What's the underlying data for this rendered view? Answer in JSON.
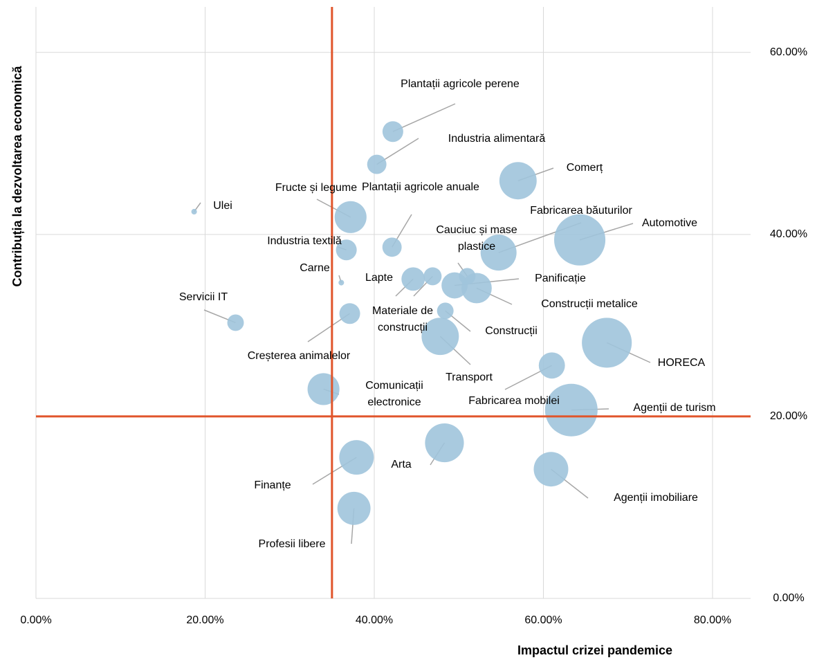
{
  "chart_data": {
    "type": "bubble",
    "xlabel": "Impactul crizei pandemice",
    "ylabel": "Contribuția la dezvoltarea economică",
    "xlim": [
      0,
      84.5
    ],
    "ylim": [
      0,
      65
    ],
    "xticks": [
      {
        "value": 0,
        "label": "0.00%"
      },
      {
        "value": 20,
        "label": "20.00%"
      },
      {
        "value": 40,
        "label": "40.00%"
      },
      {
        "value": 60,
        "label": "60.00%"
      },
      {
        "value": 80,
        "label": "80.00%"
      }
    ],
    "yticks": [
      {
        "value": 0,
        "label": "0.00%"
      },
      {
        "value": 20,
        "label": "20.00%"
      },
      {
        "value": 40,
        "label": "40.00%"
      },
      {
        "value": 60,
        "label": "60.00%"
      }
    ],
    "grid": true,
    "color": "#a0c4dc",
    "reference_lines": {
      "x": 35,
      "y": 20,
      "color": "#e0552b"
    },
    "labels": [
      "Ulei",
      "Servicii IT",
      "Carne",
      "Fructe și legume",
      "Industria textilă",
      "Plantații agricole perene",
      "Industria alimentară",
      "Plantații agricole anuale",
      "Creșterea animalelor",
      "Comunicații electronice",
      "Lapte",
      "Materiale de construcții",
      "Panificație",
      "Cauciuc și mase plastice",
      "Construcții metalice",
      "Construcții",
      "Transport",
      "Fabricarea băuturilor",
      "Comerț",
      "Automotive",
      "HORECA",
      "Fabricarea mobilei",
      "Agenții de turism",
      "Arta",
      "Finanțe",
      "Profesii libere",
      "Agenții imobiliare"
    ],
    "x": [
      18.7,
      23.6,
      36.1,
      37.2,
      36.7,
      42.2,
      40.3,
      42.1,
      37.1,
      34.0,
      44.6,
      46.9,
      49.5,
      51.0,
      52.1,
      48.4,
      47.8,
      54.7,
      57.0,
      64.3,
      67.5,
      61.0,
      63.3,
      48.3,
      37.9,
      37.6,
      60.9
    ],
    "values": [
      42.5,
      30.3,
      34.7,
      41.9,
      38.3,
      51.3,
      47.7,
      38.6,
      31.3,
      23.0,
      35.1,
      35.4,
      34.4,
      35.4,
      34.1,
      31.6,
      28.8,
      38.0,
      45.9,
      39.4,
      28.1,
      25.6,
      20.7,
      17.1,
      15.5,
      9.9,
      14.2
    ],
    "sizes": [
      1.6,
      14,
      1.6,
      52,
      22,
      22,
      19,
      19,
      22,
      52,
      28,
      16.5,
      35,
      14,
      47,
      14,
      71,
      66,
      71,
      134,
      127,
      35,
      141,
      77,
      61,
      56,
      61
    ]
  }
}
